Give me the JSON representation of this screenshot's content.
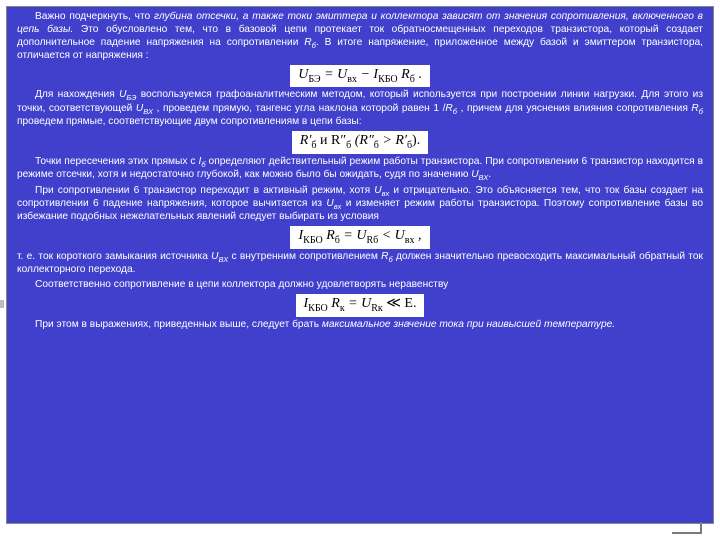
{
  "colors": {
    "slide_bg": "#4040cc",
    "text_color": "#ffffff",
    "formula_bg": "#ffffff",
    "formula_text": "#000000",
    "page_bg": "#ffffff",
    "frame_border": "#888888",
    "footer_mark": "#7a7a7a"
  },
  "typography": {
    "body_font": "Arial, sans-serif",
    "body_size_pt": 8,
    "formula_font": "Times New Roman, serif",
    "formula_size_pt": 11,
    "formula_style": "italic"
  },
  "paragraphs": {
    "p1a": "Важно подчеркнуть, что ",
    "p1b": "глубина отсечки, а также токи эмиттера и коллектора зависят от значения сопротивления, включенного в цепь базы.",
    "p1c": " Это обусловлено тем, что в базовой цепи протекает ток обратносмещенных переходов транзистора, который создает дополнительное падение напряжения на сопротивлении ",
    "p1d": ". В итоге напряжение, приложенное между базой и эмиттером транзистора, отличается от напряжения :",
    "p2a": "Для нахождения ",
    "p2b": " воспользуемся графоаналитическим методом, который используется при построении линии нагрузки. Для этого из точки, соответствующей ",
    "p2c": " , проведем прямую, тангенс угла наклона которой равен 1 /",
    "p2d": " , причем для уяснения влияния сопротивления ",
    "p2e": " проведем прямые, соответствующие двум сопротивлениям в цепи базы:",
    "p3a": "Точки пересечения этих прямых с ",
    "p3b": " определяют действительный режим работы транзистора. При сопротивлении 6 транзистор находится в режиме отсечки, хотя и недостаточно глубокой, как можно было бы ожидать, судя по значению ",
    "p3c": ".",
    "p4a": "При сопротивлении 6  транзистор переходит в активный режим, хотя ",
    "p4b": " и отрицательно. Это объясняется тем, что ток базы создает на сопротивлении 6 падение напряжения, которое вычитается из ",
    "p4c": " и изменяет режим работы транзистора. Поэтому сопротивление базы во избежание подобных нежелательных явлений следует выбирать из условия",
    "p5a": "т. е. ток короткого замыкания источника ",
    "p5b": " с внутренним сопротивлением ",
    "p5c": " должен значительно превосходить максимальный обратный ток коллекторного перехода.",
    "p6": "Соответственно сопротивление в цепи коллектора должно удовлетворять неравенству",
    "p7a": "При этом в выражениях, приведенных выше, следует брать ",
    "p7b": "максимальное значение тока  при наивысшей температуре."
  },
  "symbols": {
    "R_b": "R",
    "R_b_sub": "б",
    "U_BE": "U",
    "U_BE_sub": "БЭ",
    "U_BX": "U",
    "U_BX_sub": "вх",
    "U_BXcap_sub": "ВХ",
    "I_b": "I",
    "I_b_sub": "б"
  },
  "formulas": {
    "f1": "U",
    "f1_sub1": "БЭ",
    "f1_mid": " = U",
    "f1_sub2": "вх",
    "f1_mid2": " − I",
    "f1_sub3": "КБО",
    "f1_mid3": " R",
    "f1_sub4": "б",
    "f1_end": " .",
    "f2a": "R′",
    "f2a_sub": "б",
    "f2_mid": "   и   R″",
    "f2b_sub": "б",
    "f2_paren1": " (R″",
    "f2_paren1_sub": "б",
    "f2_gt": " > R′",
    "f2_paren2_sub": "б",
    "f2_end": ").",
    "f3a": "I",
    "f3a_sub": "КБО",
    "f3b": " R",
    "f3b_sub": "б",
    "f3c": " = U",
    "f3c_sub": "Rб",
    "f3d": " < U",
    "f3d_sub": "вх",
    "f3e": " ,",
    "f4a": "I",
    "f4a_sub": "КБО",
    "f4b": " R",
    "f4b_sub": "к",
    "f4c": " = U",
    "f4c_sub": "Rк",
    "f4d": " ≪ E.",
    "much_less": "≪"
  }
}
